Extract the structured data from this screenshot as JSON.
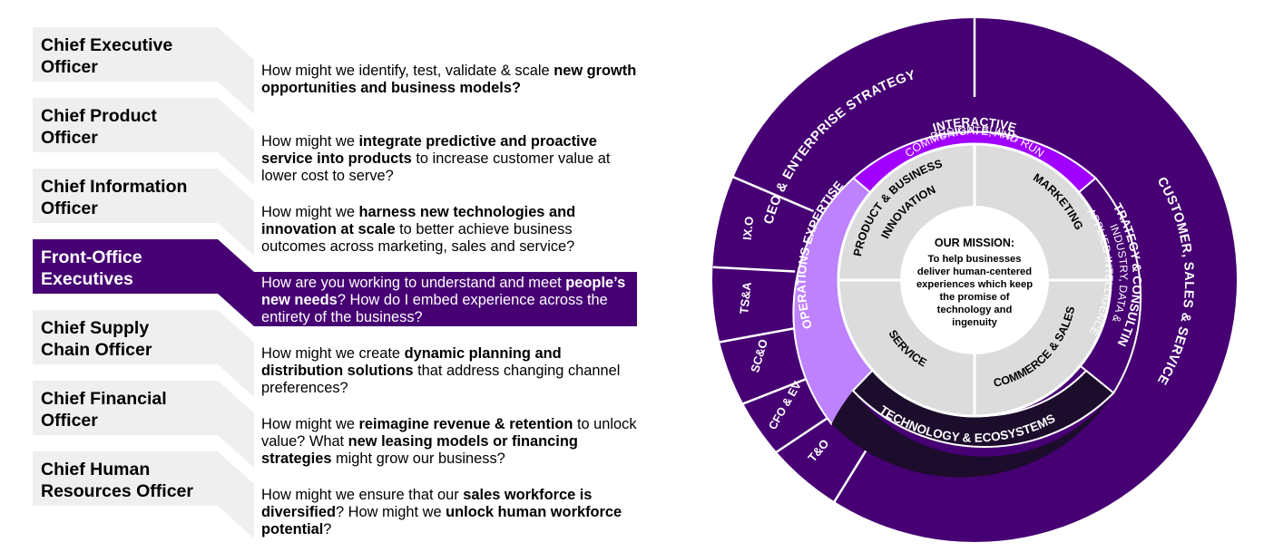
{
  "rows": [
    {
      "role": "Chief Executive\nOfficer",
      "active": false,
      "question": [
        {
          "t": "How might we identify, test, validate & scale "
        },
        {
          "t": "new growth opportunities and business models?",
          "b": true
        }
      ]
    },
    {
      "role": "Chief Product\nOfficer",
      "active": false,
      "question": [
        {
          "t": "How might we "
        },
        {
          "t": "integrate predictive and proactive service into products",
          "b": true
        },
        {
          "t": " to increase customer value at lower cost to serve?"
        }
      ]
    },
    {
      "role": "Chief Information\nOfficer",
      "active": false,
      "question": [
        {
          "t": "How might we "
        },
        {
          "t": "harness new technologies and innovation at scale",
          "b": true
        },
        {
          "t": " to better achieve business outcomes across marketing, sales and service?"
        }
      ]
    },
    {
      "role": "Front-Office\nExecutives",
      "active": true,
      "question": [
        {
          "t": "How are you working to understand and meet "
        },
        {
          "t": "people’s new needs",
          "b": true
        },
        {
          "t": "? How do I embed experience across the entirety of the business?"
        }
      ]
    },
    {
      "role": "Chief Supply\nChain Officer",
      "active": false,
      "question": [
        {
          "t": "How might we create "
        },
        {
          "t": "dynamic planning and distribution solutions",
          "b": true
        },
        {
          "t": " that address changing channel preferences?"
        }
      ]
    },
    {
      "role": "Chief Financial\nOfficer",
      "active": false,
      "question": [
        {
          "t": "How might we "
        },
        {
          "t": "reimagine revenue & retention",
          "b": true
        },
        {
          "t": " to unlock value? What "
        },
        {
          "t": "new leasing models or financing strategies",
          "b": true
        },
        {
          "t": " might grow our business?"
        }
      ]
    },
    {
      "role": "Chief Human\nResources Officer",
      "active": false,
      "question": [
        {
          "t": "How might we ensure that our "
        },
        {
          "t": "sales workforce is diversified",
          "b": true
        },
        {
          "t": "? How might we "
        },
        {
          "t": "unlock human workforce potential",
          "b": true
        },
        {
          "t": "?"
        }
      ]
    }
  ],
  "wheel": {
    "outer_left": "CEO & ENTERPRISE STRATEGY",
    "outer_right": "CUSTOMER, SALES & SERVICE",
    "small_segments": [
      "IX.O",
      "TS&A",
      "SC&O",
      "CFO & EV",
      "T&O"
    ],
    "interactive_title": "INTERACTIVE",
    "interactive_line1": "DESIGN, BUILD,",
    "interactive_line2": "COMMUNICATE, AND RUN",
    "operations": "OPERATIONS EXPERTISE",
    "strategy_title": "STRATEGY & CONSULTING",
    "strategy_line1": "INDUSTRY, DATA &",
    "strategy_line2": "APPLIED INTELLIGENCE",
    "technology": "TECHNOLOGY & ECOSYSTEMS",
    "quadrant_pbi_1": "PRODUCT & BUSINESS",
    "quadrant_pbi_2": "INNOVATION",
    "quadrant_marketing": "MARKETING",
    "quadrant_service": "SERVICE",
    "quadrant_commerce": "COMMERCE & SALES",
    "mission_title": "OUR MISSION:",
    "mission_lines": [
      "To help businesses",
      "deliver human-centered",
      "experiences which keep",
      "the promise of",
      "technology and",
      "ingenuity"
    ]
  },
  "colors": {
    "outer_purple": "#460073",
    "active_purple": "#460073",
    "interactive_purple": "#a100ff",
    "operations_purple": "#be82ff",
    "technology_dark": "#1c0d2c",
    "quadrant_grey": "#dcdcdc",
    "role_grey": "#efefef",
    "connector_grey": "#efefef"
  }
}
